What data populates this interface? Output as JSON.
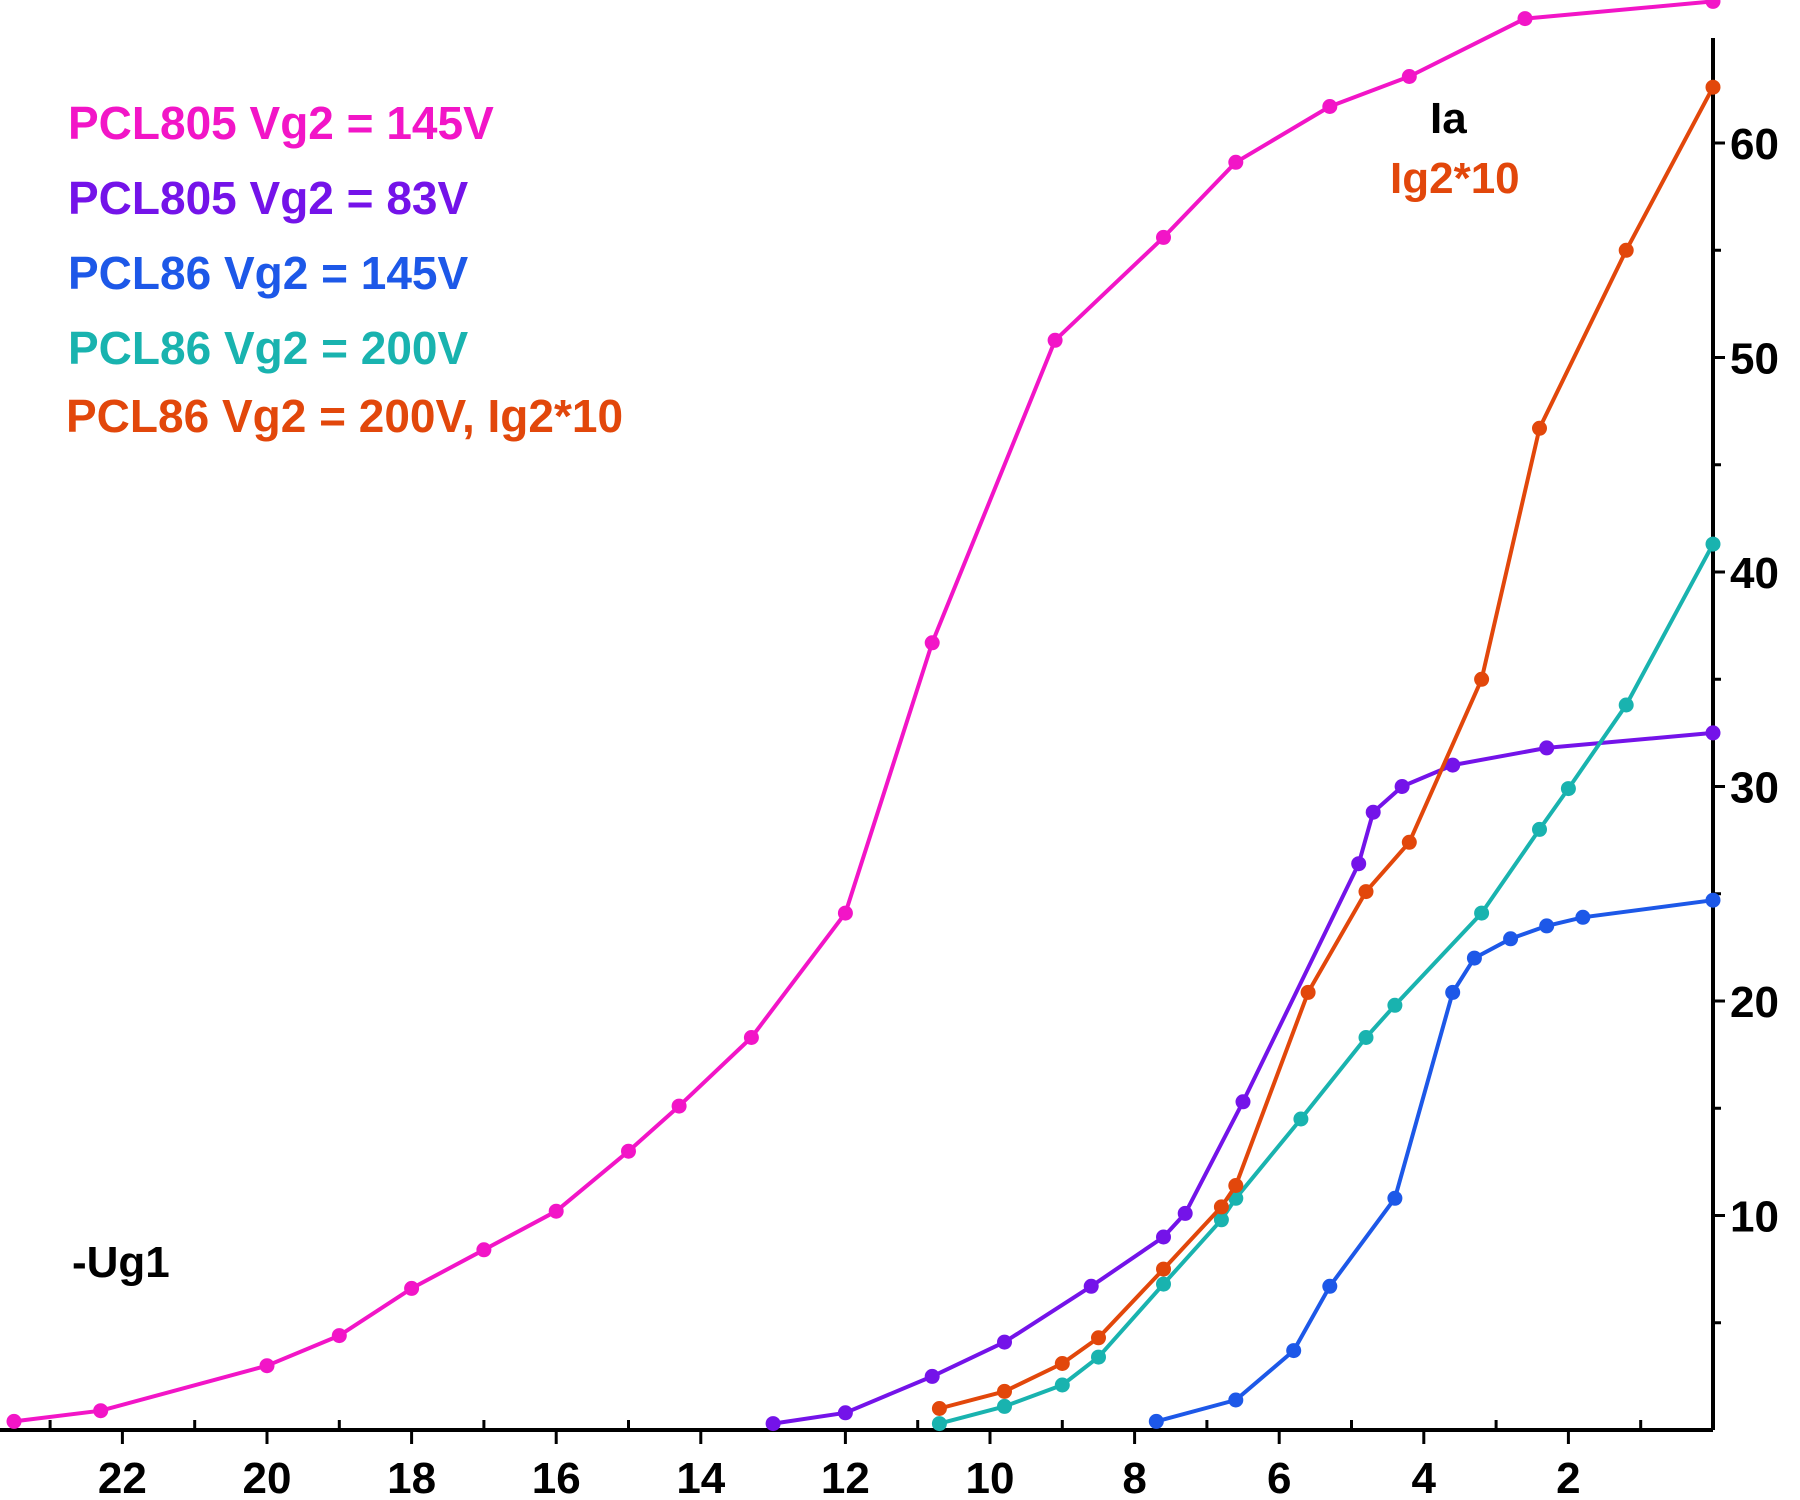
{
  "chart_data": {
    "type": "line",
    "title": "",
    "xlabel": "-Ug1",
    "ylabel": "Ia",
    "ylabel2": "Ig2*10",
    "x_reversed": true,
    "xlim": [
      0,
      24
    ],
    "ylim": [
      0,
      66
    ],
    "x_ticks": [
      2,
      4,
      6,
      8,
      10,
      12,
      14,
      16,
      18,
      20,
      22
    ],
    "x_tick_labels": [
      "2",
      "4",
      "6",
      "8",
      "10",
      "12",
      "14",
      "16",
      "18",
      "20",
      "22"
    ],
    "y_ticks": [
      10,
      20,
      30,
      40,
      50,
      60
    ],
    "y_tick_labels": [
      "10",
      "20",
      "30",
      "40",
      "50",
      "60"
    ],
    "grid": false,
    "legend_position": "top-left",
    "colors": {
      "axis": "#000000",
      "ylabel": "#000000",
      "ylabel2": "#e2470b"
    },
    "series": [
      {
        "name": "PCL805 Vg2 = 145V",
        "color": "#f215c7",
        "x": [
          23.5,
          22.3,
          20.0,
          19.0,
          18.0,
          17.0,
          16.0,
          15.0,
          14.3,
          13.3,
          12.0,
          10.8,
          9.1,
          7.6,
          6.6,
          5.3,
          4.2,
          2.6,
          0.0
        ],
        "y": [
          0.4,
          0.9,
          3.0,
          4.4,
          6.6,
          8.4,
          10.2,
          13.0,
          15.1,
          18.3,
          24.1,
          36.7,
          50.8,
          55.6,
          59.1,
          61.7,
          63.1,
          65.8,
          66.6
        ]
      },
      {
        "name": "PCL805 Vg2 = 83V",
        "color": "#7413e9",
        "x": [
          13.0,
          12.0,
          10.8,
          9.8,
          8.6,
          7.6,
          7.3,
          6.5,
          4.9,
          4.7,
          4.3,
          3.6,
          2.3,
          0.0
        ],
        "y": [
          0.3,
          0.8,
          2.5,
          4.1,
          6.7,
          9.0,
          10.1,
          15.3,
          26.4,
          28.8,
          30.0,
          31.0,
          31.8,
          32.5
        ]
      },
      {
        "name": "PCL86 Vg2 = 145V",
        "color": "#1d58e8",
        "x": [
          7.7,
          6.6,
          5.8,
          5.3,
          4.4,
          3.6,
          3.3,
          2.8,
          2.3,
          1.8,
          0.0
        ],
        "y": [
          0.4,
          1.4,
          3.7,
          6.7,
          10.8,
          20.4,
          22.0,
          22.9,
          23.5,
          23.9,
          24.7
        ]
      },
      {
        "name": "PCL86 Vg2 = 200V",
        "color": "#19b3af",
        "x": [
          10.7,
          9.8,
          9.0,
          8.5,
          7.6,
          6.8,
          6.6,
          5.7,
          4.8,
          4.4,
          3.2,
          2.4,
          2.0,
          1.2,
          0.0
        ],
        "y": [
          0.3,
          1.1,
          2.1,
          3.4,
          6.8,
          9.8,
          10.8,
          14.5,
          18.3,
          19.8,
          24.1,
          28.0,
          29.9,
          33.8,
          41.3
        ]
      },
      {
        "name": "PCL86 Vg2 = 200V, Ig2*10",
        "color": "#e2470b",
        "x": [
          10.7,
          9.8,
          9.0,
          8.5,
          7.6,
          6.8,
          6.6,
          5.6,
          4.8,
          4.2,
          3.2,
          2.4,
          1.2,
          0.0
        ],
        "y": [
          1.0,
          1.8,
          3.1,
          4.3,
          7.5,
          10.4,
          11.4,
          20.4,
          25.1,
          27.4,
          35.0,
          46.7,
          55.0,
          62.6
        ]
      }
    ]
  }
}
